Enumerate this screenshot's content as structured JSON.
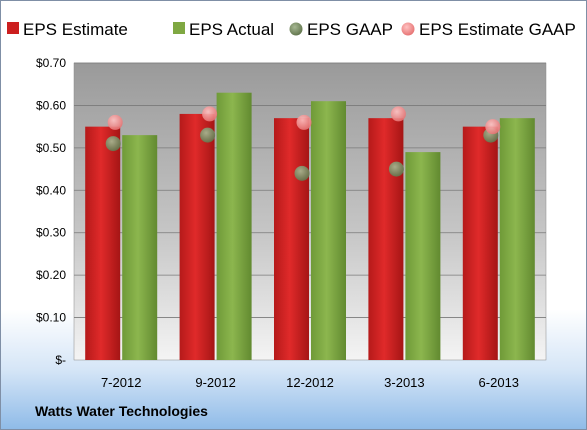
{
  "company": "Watts Water Technologies",
  "chart_data": {
    "type": "bar",
    "categories": [
      "7-2012",
      "9-2012",
      "12-2012",
      "3-2013",
      "6-2013"
    ],
    "ylim": [
      0,
      0.7
    ],
    "y_ticks": [
      0,
      0.1,
      0.2,
      0.3,
      0.4,
      0.5,
      0.6,
      0.7
    ],
    "y_tick_labels": [
      "$-",
      "$0.10",
      "$0.20",
      "$0.30",
      "$0.40",
      "$0.50",
      "$0.60",
      "$0.70"
    ],
    "grid": true,
    "legend_position": "top",
    "series": [
      {
        "name": "EPS Estimate",
        "kind": "bar",
        "color": "#cc1f1f",
        "values": [
          0.55,
          0.58,
          0.57,
          0.57,
          0.55
        ]
      },
      {
        "name": "EPS Actual",
        "kind": "bar",
        "color": "#7fa842",
        "values": [
          0.53,
          0.63,
          0.61,
          0.49,
          0.57
        ]
      },
      {
        "name": "EPS GAAP",
        "kind": "marker",
        "color": "#7a8f66",
        "values": [
          0.51,
          0.53,
          0.44,
          0.45,
          0.53
        ]
      },
      {
        "name": "EPS Estimate GAAP",
        "kind": "marker",
        "color": "#f08a8a",
        "values": [
          0.56,
          0.58,
          0.56,
          0.58,
          0.55
        ]
      }
    ]
  }
}
